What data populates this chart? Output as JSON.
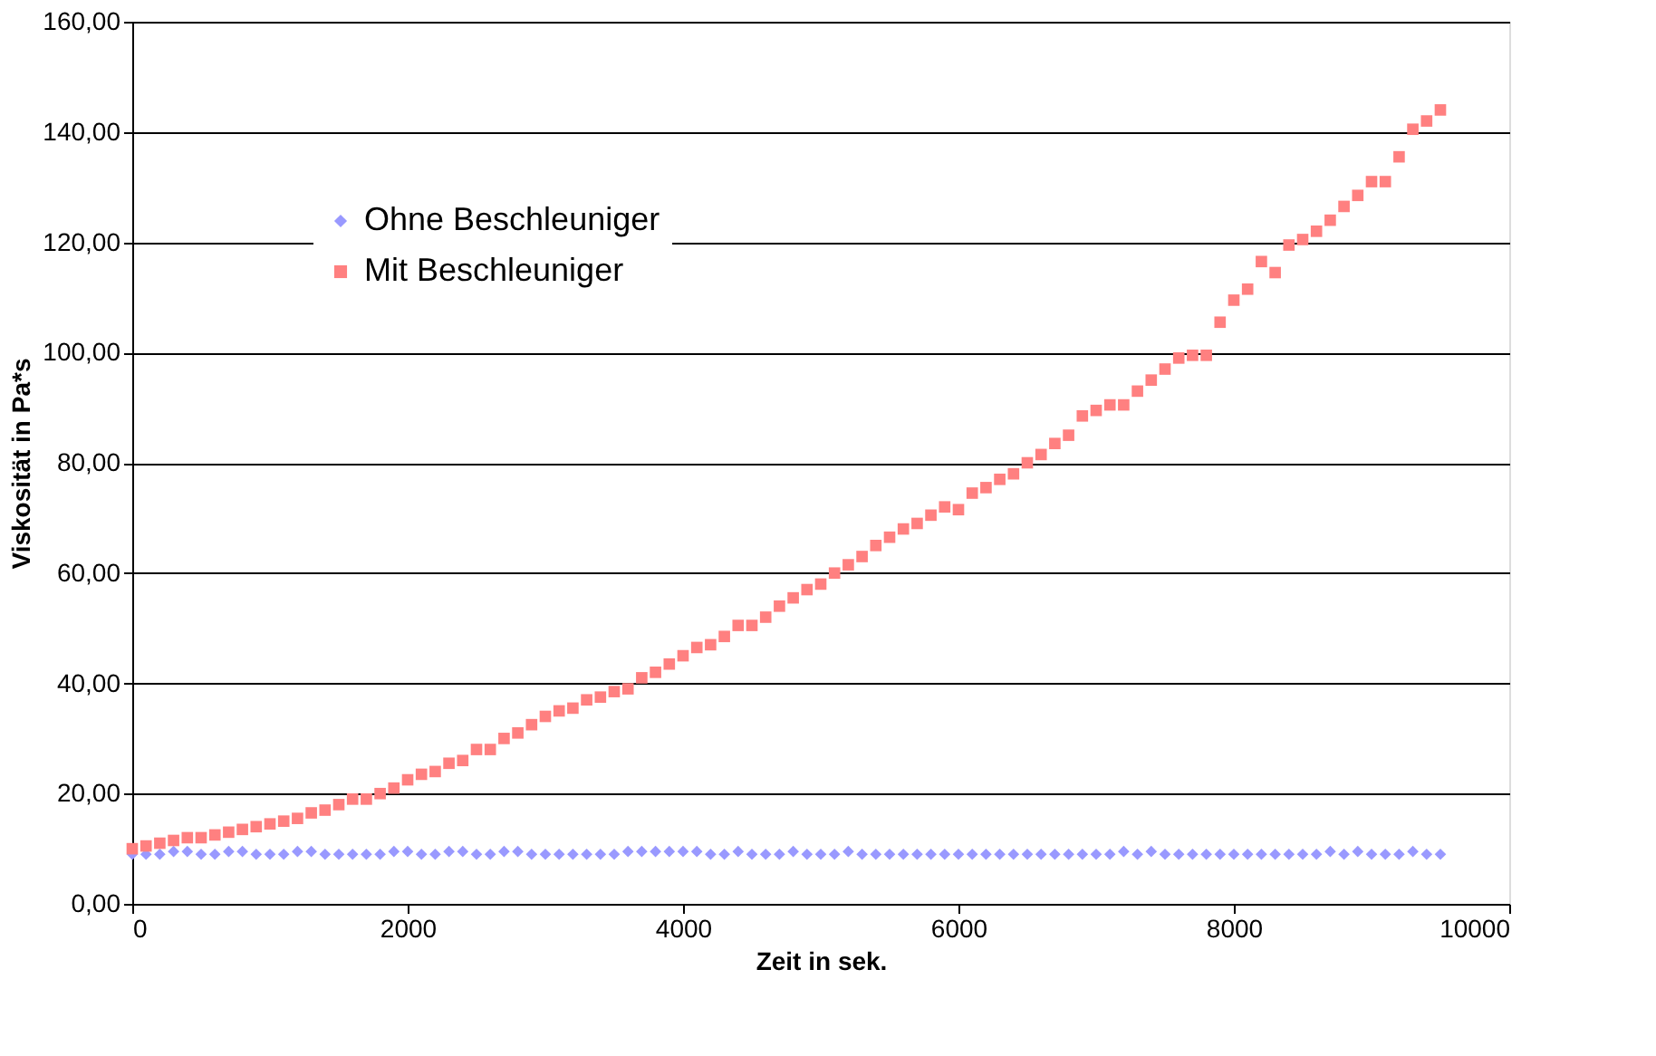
{
  "chart_data": {
    "type": "scatter",
    "xlabel": "Zeit in sek.",
    "ylabel": "Viskosität in Pa*s",
    "x": [
      0,
      100,
      200,
      300,
      400,
      500,
      600,
      700,
      800,
      900,
      1000,
      1100,
      1200,
      1300,
      1400,
      1500,
      1600,
      1700,
      1800,
      1900,
      2000,
      2100,
      2200,
      2300,
      2400,
      2500,
      2600,
      2700,
      2800,
      2900,
      3000,
      3100,
      3200,
      3300,
      3400,
      3500,
      3600,
      3700,
      3800,
      3900,
      4000,
      4100,
      4200,
      4300,
      4400,
      4500,
      4600,
      4700,
      4800,
      4900,
      5000,
      5100,
      5200,
      5300,
      5400,
      5500,
      5600,
      5700,
      5800,
      5900,
      6000,
      6100,
      6200,
      6300,
      6400,
      6500,
      6600,
      6700,
      6800,
      6900,
      7000,
      7100,
      7200,
      7300,
      7400,
      7500,
      7600,
      7700,
      7800,
      7900,
      8000,
      8100,
      8200,
      8300,
      8400,
      8500,
      8600,
      8700,
      8800,
      8900,
      9000,
      9100,
      9200,
      9300,
      9400,
      9500
    ],
    "series": [
      {
        "name": "Ohne Beschleuniger",
        "color": "#9999ff",
        "marker": "diamond",
        "values": [
          9,
          9,
          9,
          9.5,
          9.5,
          9,
          9,
          9.5,
          9.5,
          9,
          9,
          9,
          9.5,
          9.5,
          9,
          9,
          9,
          9,
          9,
          9.5,
          9.5,
          9,
          9,
          9.5,
          9.5,
          9,
          9,
          9.5,
          9.5,
          9,
          9,
          9,
          9,
          9,
          9,
          9,
          9.5,
          9.5,
          9.5,
          9.5,
          9.5,
          9.5,
          9,
          9,
          9.5,
          9,
          9,
          9,
          9.5,
          9,
          9,
          9,
          9.5,
          9,
          9,
          9,
          9,
          9,
          9,
          9,
          9,
          9,
          9,
          9,
          9,
          9,
          9,
          9,
          9,
          9,
          9,
          9,
          9.5,
          9,
          9.5,
          9,
          9,
          9,
          9,
          9,
          9,
          9,
          9,
          9,
          9,
          9,
          9,
          9.5,
          9,
          9.5,
          9,
          9,
          9,
          9.5,
          9,
          9
        ]
      },
      {
        "name": "Mit Beschleuniger",
        "color": "#ff8080",
        "marker": "square",
        "values": [
          10,
          10.5,
          11,
          11.5,
          12,
          12,
          12.5,
          13,
          13.5,
          14,
          14.5,
          15,
          15.5,
          16.5,
          17,
          18,
          19,
          19,
          20,
          21,
          22.5,
          23.5,
          24,
          25.5,
          26,
          28,
          28,
          30,
          31,
          32.5,
          34,
          35,
          35.5,
          37,
          37.5,
          38.5,
          39,
          41,
          42,
          43.5,
          45,
          46.5,
          47,
          48.5,
          50.5,
          50.5,
          52,
          54,
          55.5,
          57,
          58,
          60,
          61.5,
          63,
          65,
          66.5,
          68,
          69,
          70.5,
          72,
          71.5,
          74.5,
          75.5,
          77,
          78,
          80,
          81.5,
          83.5,
          85,
          88.5,
          89.5,
          90.5,
          90.5,
          93,
          95,
          97,
          99,
          99.5,
          99.5,
          105.5,
          109.5,
          111.5,
          116.5,
          114.5,
          119.5,
          120.5,
          122,
          124,
          126.5,
          128.5,
          131,
          131,
          135.5,
          140.5,
          142,
          144
        ]
      }
    ],
    "xlim": [
      0,
      10000
    ],
    "xticks": [
      0,
      2000,
      4000,
      6000,
      8000,
      10000
    ],
    "ylim": [
      0,
      160
    ],
    "yticks": [
      {
        "value": 0,
        "label": "0,00"
      },
      {
        "value": 20,
        "label": "20,00"
      },
      {
        "value": 40,
        "label": "40,00"
      },
      {
        "value": 60,
        "label": "60,00"
      },
      {
        "value": 80,
        "label": "80,00"
      },
      {
        "value": 100,
        "label": "100,00"
      },
      {
        "value": 120,
        "label": "120,00"
      },
      {
        "value": 140,
        "label": "140,00"
      },
      {
        "value": 160,
        "label": "160,00"
      }
    ],
    "grid": "y",
    "legend": "top left"
  }
}
